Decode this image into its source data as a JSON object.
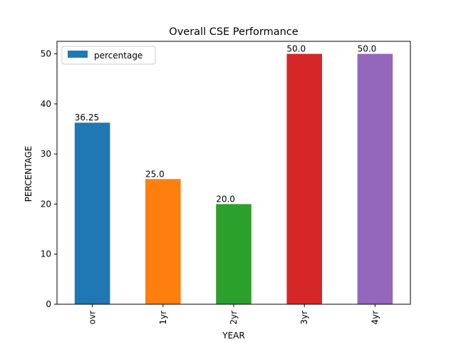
{
  "chart_data": {
    "type": "bar",
    "title": "Overall CSE Performance",
    "xlabel": "YEAR",
    "ylabel": "PERCENTAGE",
    "categories": [
      "ovr",
      "1yr",
      "2yr",
      "3yr",
      "4yr"
    ],
    "series": [
      {
        "name": "percentage",
        "values": [
          36.25,
          25.0,
          20.0,
          50.0,
          50.0
        ],
        "value_labels": [
          "36.25",
          "25.0",
          "20.0",
          "50.0",
          "50.0"
        ],
        "colors": [
          "#1f77b4",
          "#ff7f0e",
          "#2ca02c",
          "#d62728",
          "#9467bd"
        ]
      }
    ],
    "ylim": [
      0,
      52.5
    ],
    "yticks": [
      0,
      10,
      20,
      30,
      40,
      50
    ],
    "grid": false,
    "legend_position": "upper-left"
  }
}
